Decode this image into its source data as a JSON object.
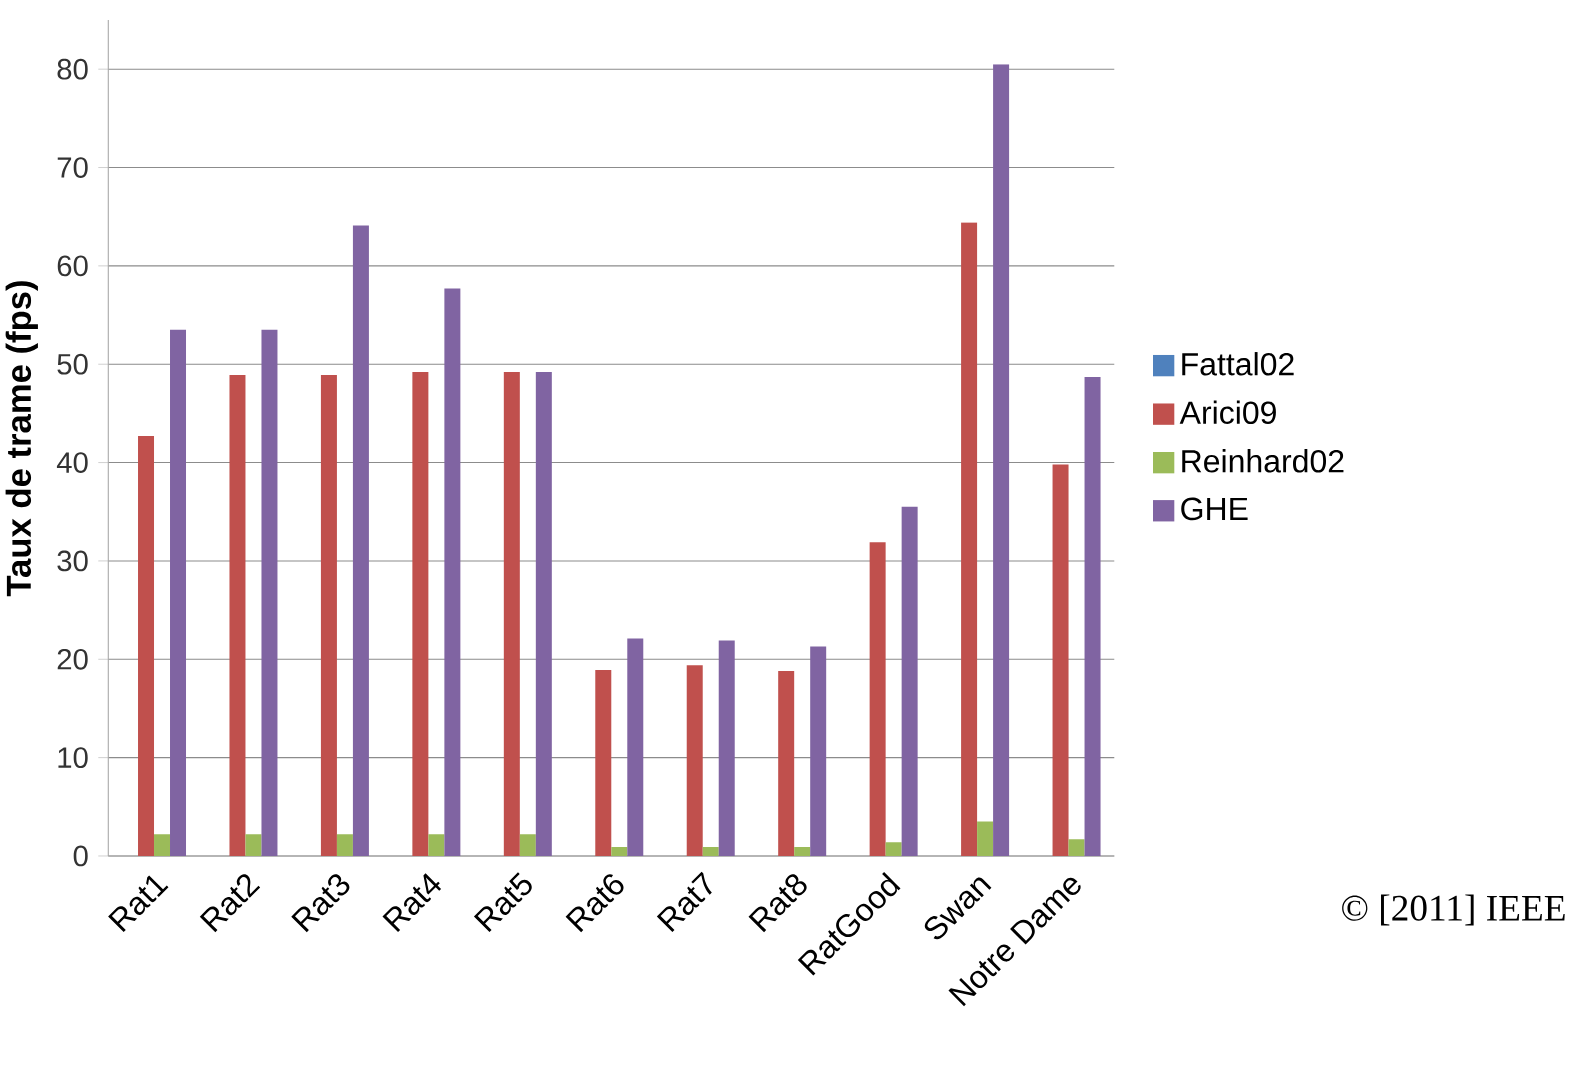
{
  "chart_data": {
    "type": "bar",
    "ylabel": "Taux de trame (fps)",
    "categories": [
      "Rat1",
      "Rat2",
      "Rat3",
      "Rat4",
      "Rat5",
      "Rat6",
      "Rat7",
      "Rat8",
      "RatGood",
      "Swan",
      "Notre Dame"
    ],
    "series": [
      {
        "name": "Fattal02",
        "color": "#4f81bd",
        "values": [
          0,
          0,
          0,
          0,
          0,
          0,
          0,
          0,
          0,
          0,
          0
        ]
      },
      {
        "name": "Arici09",
        "color": "#c0504d",
        "values": [
          42.7,
          48.9,
          48.9,
          49.2,
          49.2,
          18.9,
          19.4,
          18.8,
          31.9,
          64.4,
          39.8
        ]
      },
      {
        "name": "Reinhard02",
        "color": "#9bbb59",
        "values": [
          2.2,
          2.2,
          2.2,
          2.2,
          2.2,
          0.9,
          0.9,
          0.9,
          1.4,
          3.5,
          1.7
        ]
      },
      {
        "name": "GHE",
        "color": "#8064a2",
        "values": [
          53.5,
          53.5,
          64.1,
          57.7,
          49.2,
          22.1,
          21.9,
          21.3,
          35.5,
          80.5,
          48.7
        ]
      }
    ],
    "ylim": [
      0,
      85
    ],
    "yticks": [
      0,
      10,
      20,
      30,
      40,
      50,
      60,
      70,
      80
    ],
    "grid": "y",
    "legend": "right",
    "annotations": [
      "© [2011] IEEE"
    ]
  }
}
